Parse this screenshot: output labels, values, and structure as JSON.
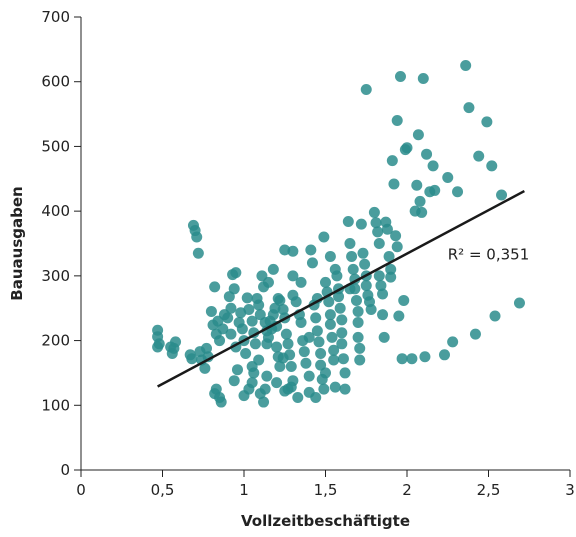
{
  "chart_data": {
    "type": "scatter",
    "title": "",
    "xlabel": "Vollzeitbeschäftigte",
    "ylabel": "Bauausgaben",
    "xlim": [
      0,
      3
    ],
    "ylim": [
      0,
      700
    ],
    "x_ticks": [
      0,
      0.5,
      1,
      1.5,
      2,
      2.5,
      3
    ],
    "x_tick_labels": [
      "0",
      "0,5",
      "1",
      "1,5",
      "2",
      "2,5",
      "3"
    ],
    "y_ticks": [
      0,
      100,
      200,
      300,
      400,
      500,
      600,
      700
    ],
    "y_tick_labels": [
      "0",
      "100",
      "200",
      "300",
      "400",
      "500",
      "600",
      "700"
    ],
    "grid": false,
    "point_color": "#2a8c8c",
    "trend_color": "#1a1a1a",
    "annotation": {
      "label": "R² = 0,351",
      "x": 2.25,
      "y": 325
    },
    "trendline": {
      "x": [
        0.47,
        2.72
      ],
      "y": [
        129,
        431
      ]
    },
    "points": [
      [
        0.47,
        216
      ],
      [
        0.47,
        206
      ],
      [
        0.48,
        195
      ],
      [
        0.47,
        190
      ],
      [
        0.55,
        190
      ],
      [
        0.56,
        180
      ],
      [
        0.57,
        188
      ],
      [
        0.58,
        198
      ],
      [
        0.69,
        378
      ],
      [
        0.7,
        370
      ],
      [
        0.71,
        360
      ],
      [
        0.72,
        335
      ],
      [
        0.67,
        178
      ],
      [
        0.68,
        172
      ],
      [
        0.73,
        183
      ],
      [
        0.74,
        170
      ],
      [
        0.76,
        157
      ],
      [
        0.77,
        188
      ],
      [
        0.78,
        175
      ],
      [
        0.8,
        245
      ],
      [
        0.82,
        283
      ],
      [
        0.81,
        224
      ],
      [
        0.83,
        210
      ],
      [
        0.84,
        230
      ],
      [
        0.83,
        125
      ],
      [
        0.85,
        112
      ],
      [
        0.86,
        105
      ],
      [
        0.82,
        118
      ],
      [
        0.85,
        200
      ],
      [
        0.87,
        218
      ],
      [
        0.88,
        240
      ],
      [
        0.9,
        235
      ],
      [
        0.91,
        268
      ],
      [
        0.92,
        250
      ],
      [
        0.93,
        302
      ],
      [
        0.94,
        280
      ],
      [
        0.92,
        210
      ],
      [
        0.95,
        190
      ],
      [
        0.96,
        155
      ],
      [
        0.94,
        138
      ],
      [
        0.97,
        228
      ],
      [
        0.98,
        243
      ],
      [
        0.99,
        218
      ],
      [
        1.0,
        200
      ],
      [
        1.01,
        180
      ],
      [
        1.02,
        266
      ],
      [
        1.03,
        248
      ],
      [
        1.0,
        115
      ],
      [
        1.03,
        125
      ],
      [
        1.05,
        135
      ],
      [
        1.06,
        150
      ],
      [
        1.05,
        230
      ],
      [
        1.06,
        212
      ],
      [
        1.07,
        195
      ],
      [
        1.08,
        265
      ],
      [
        1.09,
        255
      ],
      [
        1.1,
        240
      ],
      [
        1.09,
        170
      ],
      [
        1.1,
        118
      ],
      [
        1.12,
        105
      ],
      [
        1.13,
        125
      ],
      [
        1.14,
        145
      ],
      [
        1.11,
        300
      ],
      [
        1.12,
        283
      ],
      [
        1.13,
        228
      ],
      [
        1.14,
        215
      ],
      [
        1.15,
        205
      ],
      [
        1.16,
        230
      ],
      [
        1.17,
        218
      ],
      [
        1.18,
        240
      ],
      [
        1.19,
        250
      ],
      [
        1.2,
        222
      ],
      [
        1.2,
        190
      ],
      [
        1.21,
        175
      ],
      [
        1.22,
        160
      ],
      [
        1.18,
        310
      ],
      [
        1.21,
        265
      ],
      [
        1.22,
        262
      ],
      [
        1.24,
        248
      ],
      [
        1.25,
        235
      ],
      [
        1.26,
        210
      ],
      [
        1.27,
        195
      ],
      [
        1.28,
        178
      ],
      [
        1.29,
        160
      ],
      [
        1.3,
        138
      ],
      [
        1.29,
        128
      ],
      [
        1.27,
        125
      ],
      [
        1.25,
        122
      ],
      [
        1.3,
        338
      ],
      [
        1.3,
        300
      ],
      [
        1.3,
        270
      ],
      [
        1.32,
        260
      ],
      [
        1.34,
        240
      ],
      [
        1.35,
        228
      ],
      [
        1.36,
        200
      ],
      [
        1.37,
        183
      ],
      [
        1.38,
        165
      ],
      [
        1.4,
        145
      ],
      [
        1.4,
        120
      ],
      [
        1.41,
        340
      ],
      [
        1.42,
        320
      ],
      [
        1.43,
        255
      ],
      [
        1.44,
        235
      ],
      [
        1.45,
        215
      ],
      [
        1.46,
        198
      ],
      [
        1.47,
        180
      ],
      [
        1.47,
        162
      ],
      [
        1.48,
        140
      ],
      [
        1.49,
        125
      ],
      [
        1.49,
        360
      ],
      [
        1.5,
        290
      ],
      [
        1.51,
        275
      ],
      [
        1.52,
        260
      ],
      [
        1.53,
        240
      ],
      [
        1.53,
        225
      ],
      [
        1.54,
        205
      ],
      [
        1.55,
        185
      ],
      [
        1.55,
        170
      ],
      [
        1.53,
        330
      ],
      [
        1.56,
        310
      ],
      [
        1.57,
        300
      ],
      [
        1.58,
        280
      ],
      [
        1.58,
        268
      ],
      [
        1.59,
        250
      ],
      [
        1.6,
        232
      ],
      [
        1.6,
        212
      ],
      [
        1.6,
        195
      ],
      [
        1.61,
        172
      ],
      [
        1.62,
        150
      ],
      [
        1.62,
        125
      ],
      [
        1.64,
        384
      ],
      [
        1.65,
        350
      ],
      [
        1.66,
        330
      ],
      [
        1.67,
        310
      ],
      [
        1.68,
        295
      ],
      [
        1.68,
        280
      ],
      [
        1.69,
        262
      ],
      [
        1.7,
        245
      ],
      [
        1.7,
        228
      ],
      [
        1.7,
        205
      ],
      [
        1.71,
        188
      ],
      [
        1.71,
        170
      ],
      [
        1.72,
        380
      ],
      [
        1.73,
        335
      ],
      [
        1.74,
        318
      ],
      [
        1.75,
        300
      ],
      [
        1.75,
        285
      ],
      [
        1.76,
        270
      ],
      [
        1.77,
        260
      ],
      [
        1.78,
        248
      ],
      [
        1.75,
        588
      ],
      [
        1.8,
        398
      ],
      [
        1.81,
        382
      ],
      [
        1.82,
        368
      ],
      [
        1.83,
        350
      ],
      [
        1.83,
        300
      ],
      [
        1.84,
        285
      ],
      [
        1.85,
        272
      ],
      [
        1.85,
        240
      ],
      [
        1.86,
        205
      ],
      [
        1.87,
        383
      ],
      [
        1.88,
        372
      ],
      [
        1.89,
        330
      ],
      [
        1.9,
        310
      ],
      [
        1.9,
        298
      ],
      [
        1.91,
        478
      ],
      [
        1.92,
        442
      ],
      [
        1.93,
        362
      ],
      [
        1.94,
        345
      ],
      [
        1.95,
        238
      ],
      [
        1.94,
        540
      ],
      [
        1.96,
        608
      ],
      [
        1.97,
        172
      ],
      [
        1.98,
        262
      ],
      [
        1.99,
        495
      ],
      [
        2.0,
        498
      ],
      [
        2.03,
        172
      ],
      [
        2.05,
        400
      ],
      [
        2.06,
        440
      ],
      [
        2.07,
        518
      ],
      [
        2.08,
        415
      ],
      [
        2.09,
        398
      ],
      [
        2.1,
        605
      ],
      [
        2.11,
        175
      ],
      [
        2.12,
        488
      ],
      [
        2.14,
        430
      ],
      [
        2.16,
        470
      ],
      [
        2.17,
        432
      ],
      [
        2.23,
        178
      ],
      [
        2.25,
        452
      ],
      [
        2.28,
        198
      ],
      [
        2.31,
        430
      ],
      [
        2.36,
        625
      ],
      [
        2.38,
        560
      ],
      [
        2.42,
        210
      ],
      [
        2.44,
        485
      ],
      [
        2.49,
        538
      ],
      [
        2.52,
        470
      ],
      [
        2.54,
        238
      ],
      [
        2.58,
        425
      ],
      [
        2.69,
        258
      ],
      [
        1.25,
        340
      ],
      [
        1.15,
        290
      ],
      [
        1.35,
        290
      ],
      [
        1.45,
        265
      ],
      [
        1.05,
        160
      ],
      [
        0.95,
        305
      ],
      [
        1.65,
        280
      ],
      [
        1.4,
        205
      ],
      [
        1.5,
        150
      ],
      [
        1.2,
        135
      ],
      [
        1.33,
        112
      ],
      [
        1.44,
        112
      ],
      [
        1.56,
        128
      ],
      [
        1.24,
        173
      ],
      [
        1.14,
        195
      ]
    ]
  }
}
